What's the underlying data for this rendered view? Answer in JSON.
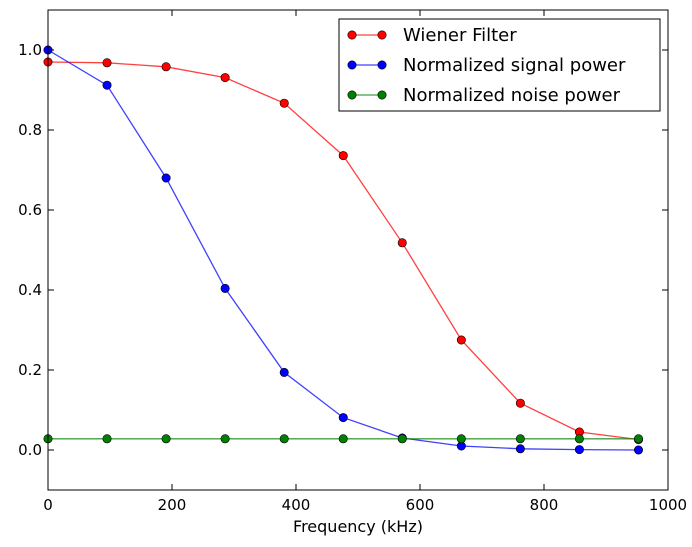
{
  "chart_data": {
    "type": "line",
    "title": "",
    "xlabel": "Frequency (kHz)",
    "ylabel": "",
    "xlim": [
      0,
      1000
    ],
    "ylim": [
      -0.1,
      1.1
    ],
    "xticks": [
      0,
      200,
      400,
      600,
      800,
      1000
    ],
    "yticks": [
      0.0,
      0.2,
      0.4,
      0.6,
      0.8,
      1.0
    ],
    "xtick_labels": [
      "0",
      "200",
      "400",
      "600",
      "800",
      "1000"
    ],
    "ytick_labels": [
      "0.0",
      "0.2",
      "0.4",
      "0.6",
      "0.8",
      "1.0"
    ],
    "grid": false,
    "legend_position": "top-right",
    "x": [
      0,
      95.2,
      190.5,
      285.7,
      381.0,
      476.2,
      571.4,
      666.7,
      761.9,
      857.1,
      952.4
    ],
    "series": [
      {
        "name": "Wiener Filter",
        "color": "#ff0000",
        "values": [
          0.97,
          0.968,
          0.958,
          0.931,
          0.867,
          0.736,
          0.518,
          0.275,
          0.117,
          0.045,
          0.026
        ]
      },
      {
        "name": "Normalized signal power",
        "color": "#0000ff",
        "values": [
          1.0,
          0.912,
          0.68,
          0.404,
          0.194,
          0.081,
          0.03,
          0.01,
          0.003,
          0.001,
          0.0
        ]
      },
      {
        "name": "Normalized noise power",
        "color": "#008000",
        "values": [
          0.028,
          0.028,
          0.028,
          0.028,
          0.028,
          0.028,
          0.028,
          0.028,
          0.028,
          0.028,
          0.028
        ]
      }
    ]
  }
}
